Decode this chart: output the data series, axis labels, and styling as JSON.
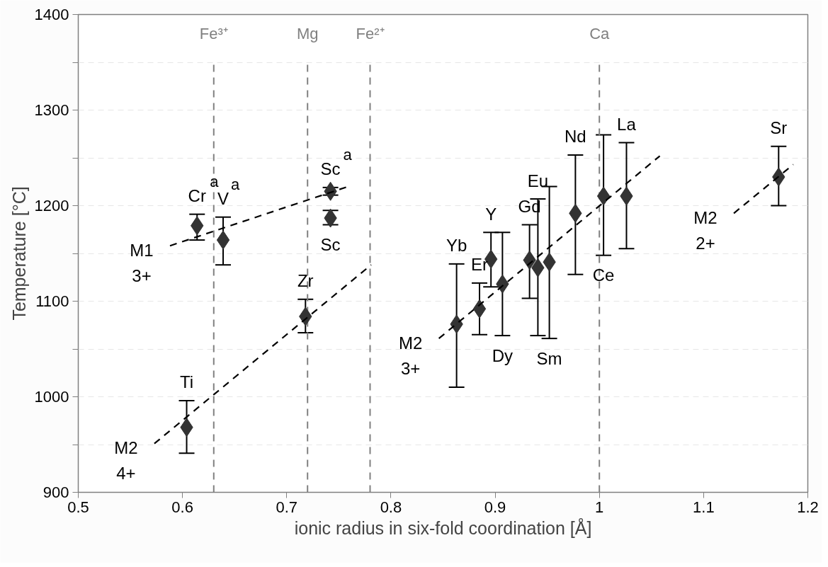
{
  "chart_data": {
    "type": "scatter",
    "xlabel": "ionic radius in six-fold coordination [Å]",
    "ylabel": "Temperature [°C]",
    "xlim": [
      0.5,
      1.2
    ],
    "xticks": [
      0.5,
      0.6,
      0.7,
      0.8,
      0.9,
      1,
      1.1,
      1.2
    ],
    "ylim": [
      900,
      1400
    ],
    "yticks": [
      900,
      {
        "value": 950,
        "label": null
      },
      1000,
      {
        "value": 1050,
        "label": null
      },
      1100,
      {
        "value": 1150,
        "label": null
      },
      1200,
      {
        "value": 1250,
        "label": null
      },
      1300,
      {
        "value": 1350,
        "label": null
      },
      1400
    ],
    "grid": "y",
    "marker": "diamond",
    "series": [
      {
        "color": "#333333",
        "x": [
          0.614,
          0.639,
          0.742,
          0.742,
          0.718,
          0.604,
          0.863,
          0.885,
          0.896,
          0.907,
          0.933,
          0.941,
          0.952,
          0.977,
          1.004,
          1.026,
          1.172
        ],
        "values": [
          1179,
          1164,
          1215,
          1187,
          1084,
          968,
          1076,
          1092,
          1144,
          1118,
          1143,
          1135,
          1141,
          1192,
          1210,
          1210,
          1230
        ],
        "errors": [
          [
            1164,
            1191
          ],
          [
            1138,
            1188
          ],
          [
            1211,
            1219
          ],
          [
            1180,
            1195
          ],
          [
            1067,
            1102
          ],
          [
            941,
            996
          ],
          [
            1010,
            1139
          ],
          [
            1065,
            1119
          ],
          [
            1115,
            1172
          ],
          [
            1064,
            1172
          ],
          [
            1103,
            1180
          ],
          [
            1064,
            1207
          ],
          [
            1061,
            1220
          ],
          [
            1128,
            1253
          ],
          [
            1148,
            1274
          ],
          [
            1155,
            1266
          ],
          [
            1200,
            1262
          ]
        ]
      },
      {
        "type": "line",
        "color": "#000000",
        "line_style": "dashed",
        "marker": "none",
        "x": [
          0.588,
          0.759
        ],
        "values": [
          1158,
          1220
        ]
      },
      {
        "type": "line",
        "color": "#000000",
        "line_style": "dashed",
        "marker": "none",
        "x": [
          0.573,
          0.781
        ],
        "values": [
          951,
          1138
        ]
      },
      {
        "type": "line",
        "color": "#000000",
        "line_style": "dashed",
        "marker": "none",
        "x": [
          0.846,
          1.058
        ],
        "values": [
          1061,
          1252
        ]
      },
      {
        "type": "line",
        "color": "#000000",
        "line_style": "dashed",
        "marker": "none",
        "x": [
          1.129,
          1.186
        ],
        "values": [
          1192,
          1243
        ]
      }
    ],
    "ref_lines": [
      {
        "axis": "x",
        "value": 0.63,
        "label": "Fe³⁺",
        "color": "#808080",
        "line_style": "dashed"
      },
      {
        "axis": "x",
        "value": 0.72,
        "label": "Mg",
        "color": "#808080",
        "line_style": "dashed"
      },
      {
        "axis": "x",
        "value": 0.78,
        "label": "Fe²⁺",
        "color": "#808080",
        "line_style": "dashed"
      },
      {
        "axis": "x",
        "value": 1.0,
        "label": "Ca",
        "color": "#808080",
        "line_style": "dashed"
      }
    ],
    "annotations": [
      {
        "text": "Cr$^{a}$",
        "x": 0.614,
        "y": 1191
      },
      {
        "text": "V$^{a}$",
        "x": 0.639,
        "y": 1188
      },
      {
        "text": "Sc$^{a}$",
        "x": 0.742,
        "y": 1219
      },
      {
        "text": "Sc",
        "x": 0.742,
        "y": 1180
      },
      {
        "text": "Zr",
        "x": 0.718,
        "y": 1102
      },
      {
        "text": "Ti",
        "x": 0.604,
        "y": 996
      },
      {
        "text": "Yb",
        "x": 0.863,
        "y": 1139
      },
      {
        "text": "Er",
        "x": 0.885,
        "y": 1119
      },
      {
        "text": "Y",
        "x": 0.896,
        "y": 1172
      },
      {
        "text": "Dy",
        "x": 0.907,
        "y": 1064
      },
      {
        "text": "Gd",
        "x": 0.933,
        "y": 1180
      },
      {
        "text": "Eu",
        "x": 0.941,
        "y": 1207
      },
      {
        "text": "Sm",
        "x": 0.952,
        "y": 1061
      },
      {
        "text": "Nd",
        "x": 0.977,
        "y": 1253
      },
      {
        "text": "Ce",
        "x": 1.004,
        "y": 1148
      },
      {
        "text": "La",
        "x": 1.026,
        "y": 1266
      },
      {
        "text": "Sr",
        "x": 1.172,
        "y": 1262
      },
      {
        "text": "M1\n3+",
        "x": 0.588,
        "y": 1158
      },
      {
        "text": "M2\n4+",
        "x": 0.573,
        "y": 951
      },
      {
        "text": "M2\n3+",
        "x": 0.846,
        "y": 1061
      },
      {
        "text": "M2\n2+",
        "x": 1.129,
        "y": 1192
      }
    ]
  }
}
